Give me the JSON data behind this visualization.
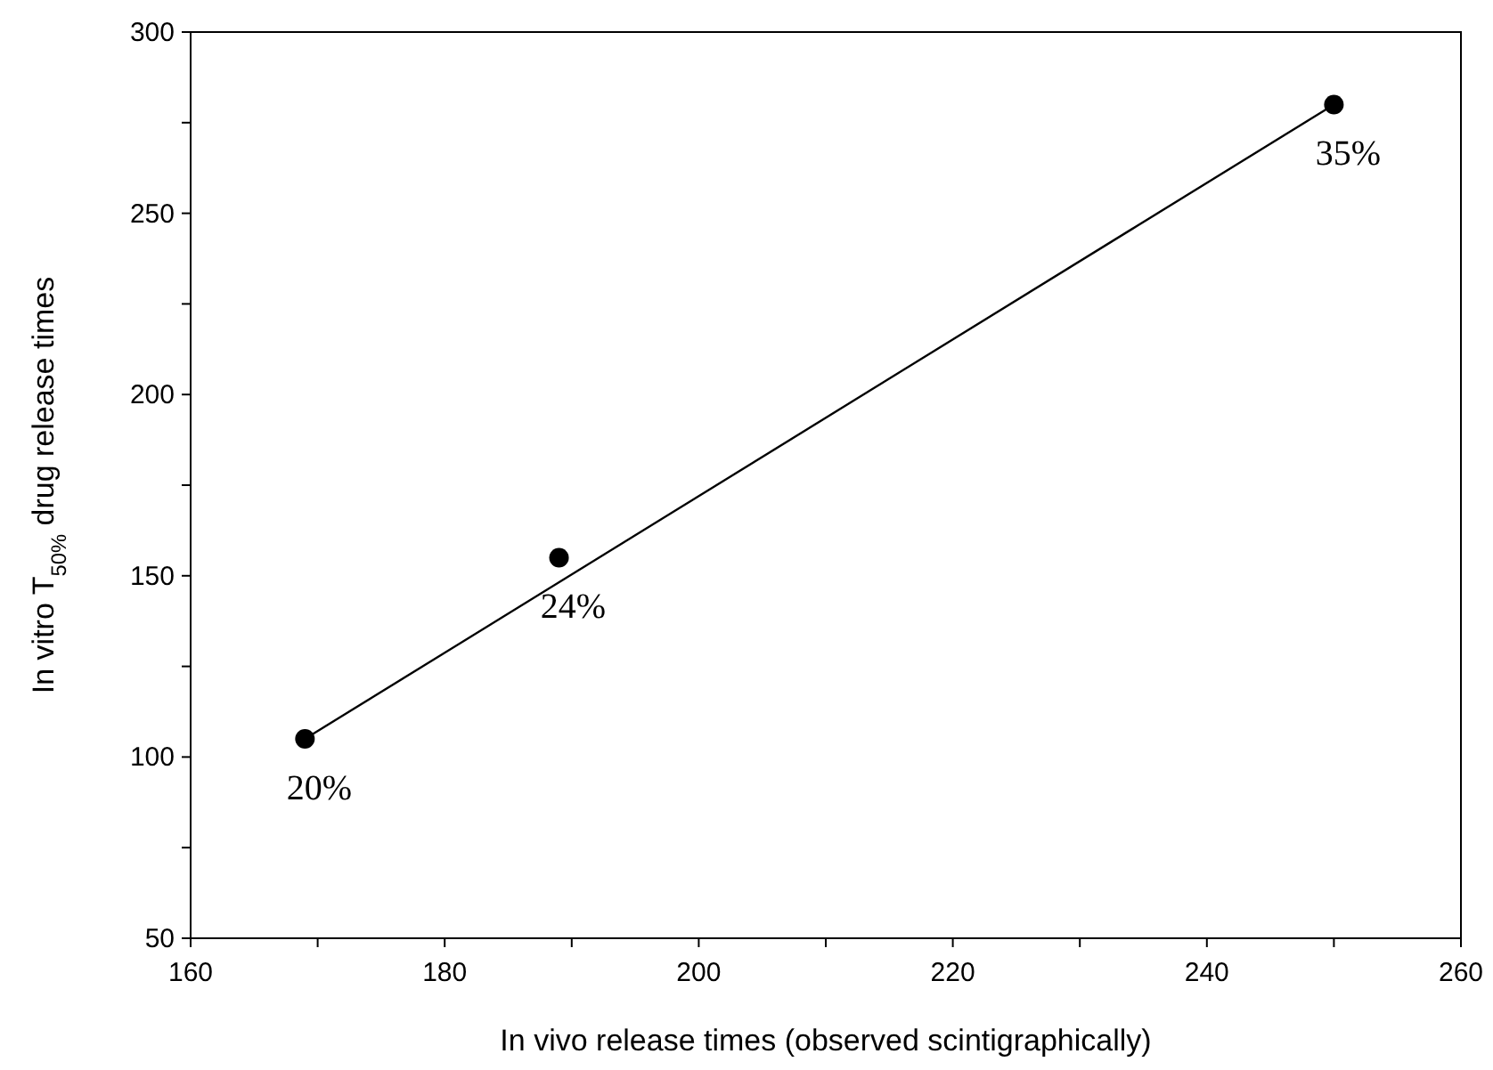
{
  "chart_data": {
    "type": "scatter",
    "xlabel": "In vivo release times (observed scintigraphically)",
    "ylabel": "In vitro T$_{50%}$ drug release times",
    "x": [
      169,
      189,
      250
    ],
    "series": [
      {
        "color": "#000000",
        "values": [
          105,
          155,
          280
        ],
        "marker": "circle"
      },
      {
        "type": "line",
        "color": "#000000",
        "x": [
          169,
          250
        ],
        "values": [
          105,
          280
        ],
        "marker": "none"
      }
    ],
    "xlim": [
      160,
      260
    ],
    "ylim": [
      50,
      300
    ],
    "xticks": [
      160,
      {
        "value": 170,
        "label": null
      },
      180,
      {
        "value": 190,
        "label": null
      },
      200,
      {
        "value": 210,
        "label": null
      },
      220,
      {
        "value": 230,
        "label": null
      },
      240,
      {
        "value": 250,
        "label": null
      },
      260
    ],
    "yticks": [
      50,
      {
        "value": 75,
        "label": null
      },
      100,
      {
        "value": 125,
        "label": null
      },
      150,
      {
        "value": 175,
        "label": null
      },
      200,
      {
        "value": 225,
        "label": null
      },
      250,
      {
        "value": 275,
        "label": null
      },
      300
    ],
    "annotations": [
      {
        "text": "20%",
        "x": 169,
        "y": 105
      },
      {
        "text": "24%",
        "x": 189,
        "y": 155
      },
      {
        "text": "35%",
        "x": 250,
        "y": 280
      }
    ],
    "grid": false
  }
}
